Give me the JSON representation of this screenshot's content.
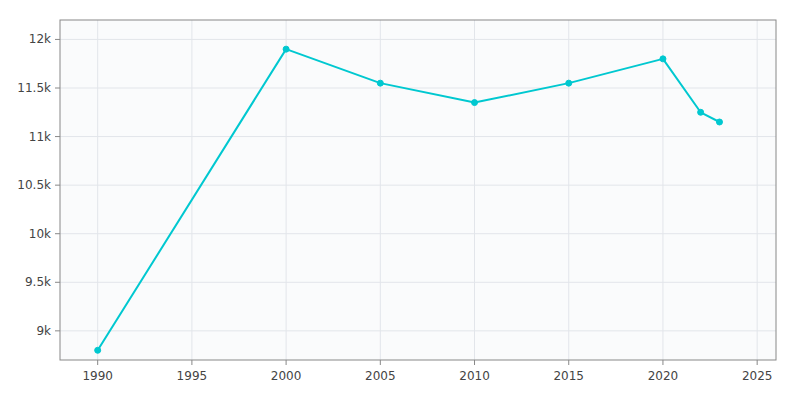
{
  "chart_data": {
    "type": "line",
    "x": [
      1990,
      2000,
      2005,
      2010,
      2015,
      2020,
      2022,
      2023
    ],
    "values": [
      8800,
      11900,
      11550,
      11350,
      11550,
      11800,
      11250,
      11150
    ],
    "color": "#00c8d0",
    "marker": "circle",
    "xlim": [
      1988,
      2026
    ],
    "ylim": [
      8700,
      12200
    ],
    "xticks": [
      1990,
      1995,
      2000,
      2005,
      2010,
      2015,
      2020,
      2025
    ],
    "yticks": [
      {
        "value": 9000,
        "label": "9k"
      },
      {
        "value": 9500,
        "label": "9.5k"
      },
      {
        "value": 10000,
        "label": "10k"
      },
      {
        "value": 10500,
        "label": "10.5k"
      },
      {
        "value": 11000,
        "label": "11k"
      },
      {
        "value": 11500,
        "label": "11.5k"
      },
      {
        "value": 12000,
        "label": "12k"
      }
    ],
    "grid": true
  }
}
